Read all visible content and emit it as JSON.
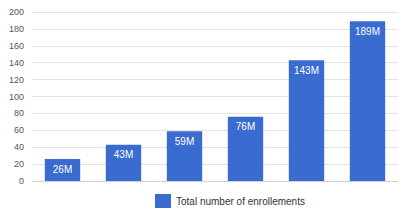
{
  "chart_data": {
    "type": "bar",
    "categories": [
      null,
      null,
      null,
      null,
      null,
      null
    ],
    "series": [
      {
        "name": "Total number of enrollements",
        "color": "#3a6bd1",
        "values": [
          26,
          43,
          59,
          76,
          143,
          189
        ],
        "value_labels": [
          "26M",
          "43M",
          "59M",
          "76M",
          "143M",
          "189M"
        ]
      }
    ],
    "ylim": [
      0,
      200
    ],
    "yticks": [
      0,
      20,
      40,
      60,
      80,
      100,
      120,
      140,
      160,
      180,
      200
    ],
    "grid": true,
    "data_labels": true,
    "legend": "bottom",
    "tick_labels": "y"
  }
}
